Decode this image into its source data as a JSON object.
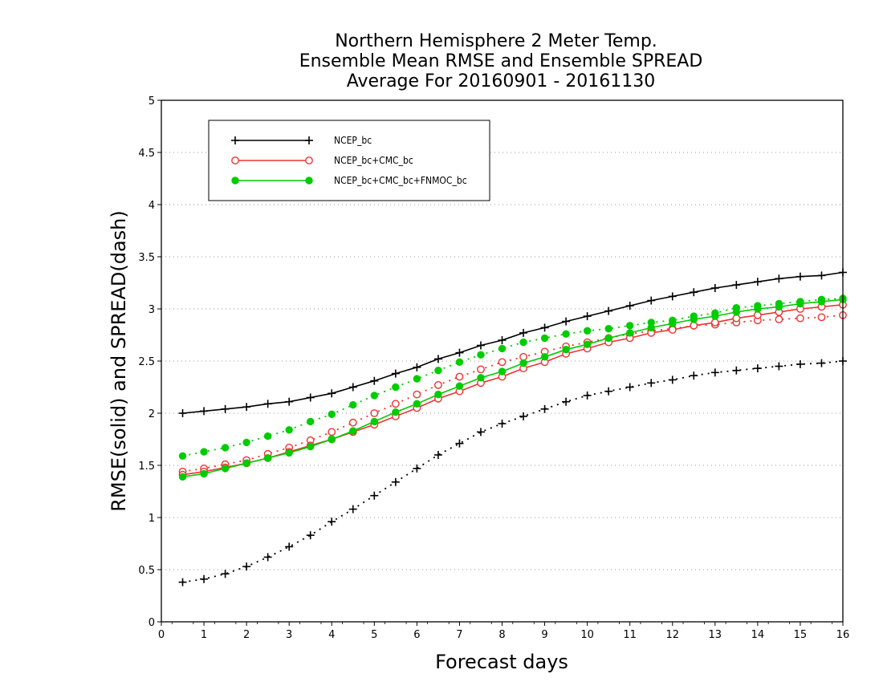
{
  "title_lines": [
    "Northern Hemisphere 2 Meter Temp.",
    "Ensemble Mean RMSE and Ensemble SPREAD",
    "Average For 20160901 - 20161130"
  ],
  "chart_data": {
    "type": "line",
    "xlabel": "Forecast days",
    "ylabel": "RMSE(solid) and SPREAD(dash)",
    "xlim": [
      0,
      16
    ],
    "ylim": [
      0,
      5
    ],
    "x_ticks": [
      "0",
      "1",
      "2",
      "3",
      "4",
      "5",
      "6",
      "7",
      "8",
      "9",
      "10",
      "11",
      "12",
      "13",
      "14",
      "15",
      "16"
    ],
    "y_ticks": [
      "0",
      "0.5",
      "1",
      "1.5",
      "2",
      "2.5",
      "3",
      "3.5",
      "4",
      "4.5",
      "5"
    ],
    "grid": "horizontal dotted",
    "legend_position": "top-left",
    "x": [
      0.5,
      1,
      1.5,
      2,
      2.5,
      3,
      3.5,
      4,
      4.5,
      5,
      5.5,
      6,
      6.5,
      7,
      7.5,
      8,
      8.5,
      9,
      9.5,
      10,
      10.5,
      11,
      11.5,
      12,
      12.5,
      13,
      13.5,
      14,
      14.5,
      15,
      15.5,
      16
    ],
    "series": [
      {
        "name": "NCEP_bc",
        "color": "#000000",
        "marker": "plus",
        "rmse": [
          2.0,
          2.02,
          2.04,
          2.06,
          2.09,
          2.11,
          2.15,
          2.19,
          2.25,
          2.31,
          2.38,
          2.44,
          2.52,
          2.58,
          2.65,
          2.7,
          2.77,
          2.82,
          2.88,
          2.93,
          2.98,
          3.03,
          3.08,
          3.12,
          3.16,
          3.2,
          3.23,
          3.26,
          3.29,
          3.31,
          3.32,
          3.35
        ],
        "spread": [
          0.38,
          0.41,
          0.46,
          0.53,
          0.62,
          0.72,
          0.83,
          0.96,
          1.08,
          1.21,
          1.34,
          1.47,
          1.6,
          1.71,
          1.82,
          1.9,
          1.97,
          2.04,
          2.11,
          2.17,
          2.21,
          2.25,
          2.29,
          2.32,
          2.36,
          2.39,
          2.41,
          2.43,
          2.45,
          2.47,
          2.48,
          2.5
        ]
      },
      {
        "name": "NCEP_bc+CMC_bc",
        "color": "#ee3333",
        "marker": "open-circle",
        "rmse": [
          1.41,
          1.44,
          1.48,
          1.52,
          1.57,
          1.63,
          1.69,
          1.75,
          1.82,
          1.89,
          1.97,
          2.05,
          2.14,
          2.21,
          2.29,
          2.35,
          2.43,
          2.49,
          2.57,
          2.62,
          2.68,
          2.72,
          2.77,
          2.8,
          2.84,
          2.87,
          2.91,
          2.94,
          2.97,
          3.0,
          3.02,
          3.04
        ],
        "spread": [
          1.44,
          1.47,
          1.51,
          1.55,
          1.61,
          1.67,
          1.74,
          1.82,
          1.91,
          2.0,
          2.09,
          2.18,
          2.27,
          2.35,
          2.42,
          2.49,
          2.54,
          2.59,
          2.64,
          2.68,
          2.72,
          2.76,
          2.79,
          2.81,
          2.84,
          2.85,
          2.87,
          2.89,
          2.9,
          2.91,
          2.92,
          2.94
        ]
      },
      {
        "name": "NCEP_bc+CMC_bc+FNMOC_bc",
        "color": "#00cc00",
        "marker": "filled-circle",
        "rmse": [
          1.39,
          1.42,
          1.47,
          1.52,
          1.57,
          1.62,
          1.68,
          1.75,
          1.83,
          1.92,
          2.01,
          2.09,
          2.18,
          2.26,
          2.34,
          2.4,
          2.48,
          2.54,
          2.61,
          2.66,
          2.72,
          2.77,
          2.82,
          2.86,
          2.9,
          2.93,
          2.97,
          3.0,
          3.02,
          3.05,
          3.07,
          3.09
        ],
        "spread": [
          1.59,
          1.63,
          1.67,
          1.72,
          1.78,
          1.84,
          1.92,
          1.99,
          2.08,
          2.17,
          2.25,
          2.33,
          2.41,
          2.49,
          2.56,
          2.62,
          2.68,
          2.72,
          2.76,
          2.79,
          2.81,
          2.84,
          2.87,
          2.89,
          2.93,
          2.96,
          3.01,
          3.03,
          3.05,
          3.07,
          3.09,
          3.1
        ]
      }
    ]
  }
}
